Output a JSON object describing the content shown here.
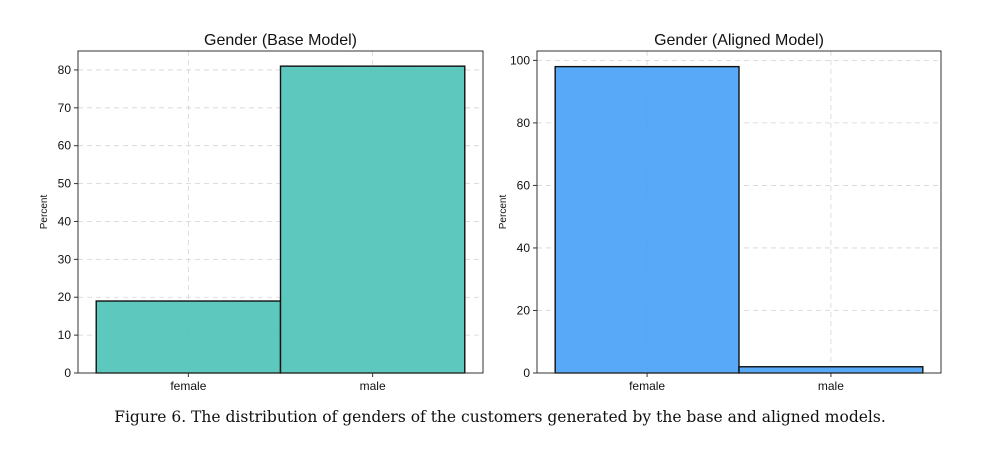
{
  "caption": "Figure 6. The distribution of genders of the customers generated by the base and aligned models.",
  "chart_data": [
    {
      "type": "bar",
      "title": "Gender (Base Model)",
      "xlabel": "",
      "ylabel": "Percent",
      "categories": [
        "female",
        "male"
      ],
      "values": [
        19,
        81
      ],
      "ylim": [
        0,
        85
      ],
      "yticks": [
        0,
        10,
        20,
        30,
        40,
        50,
        60,
        70,
        80
      ],
      "color": "#4fc3b9",
      "grid": true
    },
    {
      "type": "bar",
      "title": "Gender (Aligned Model)",
      "xlabel": "",
      "ylabel": "Percent",
      "categories": [
        "female",
        "male"
      ],
      "values": [
        98,
        2
      ],
      "ylim": [
        0,
        103
      ],
      "yticks": [
        0,
        20,
        40,
        60,
        80,
        100
      ],
      "color": "#4aa3f7",
      "grid": true
    }
  ]
}
